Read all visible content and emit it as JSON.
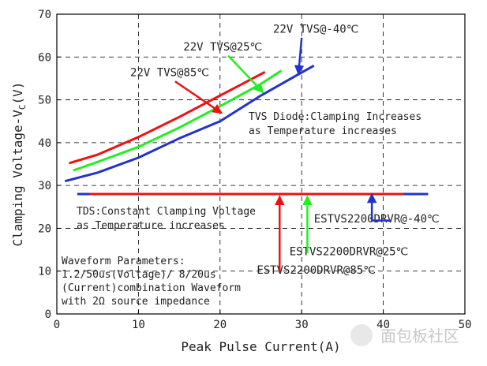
{
  "chart_data": {
    "type": "line",
    "xlabel": "Peak Pulse Current(A)",
    "ylabel_main": "Clamping Voltage-V",
    "ylabel_sub": "C",
    "ylabel_unit": "(V)",
    "xlim": [
      0,
      50
    ],
    "ylim": [
      0,
      70
    ],
    "x_ticks": [
      0,
      10,
      20,
      30,
      40,
      50
    ],
    "y_ticks": [
      0,
      10,
      20,
      30,
      40,
      50,
      60,
      70
    ],
    "grid": "dashed",
    "series": [
      {
        "name": "22V TVS@85℃",
        "color": "#ee1111",
        "x": [
          1.5,
          5,
          10,
          15,
          20,
          25.5
        ],
        "y": [
          35.2,
          37.2,
          41.3,
          46.0,
          51.0,
          56.5
        ]
      },
      {
        "name": "22V TVS@25℃",
        "color": "#22ee22",
        "x": [
          2,
          5,
          10,
          15,
          20,
          25,
          27.5
        ],
        "y": [
          33.5,
          35.5,
          39.0,
          43.5,
          48.5,
          53.7,
          56.8
        ]
      },
      {
        "name": "22V TVS@-40℃",
        "color": "#2233cc",
        "x": [
          1,
          5,
          10,
          15,
          20,
          25,
          31.5
        ],
        "y": [
          31.0,
          33.0,
          36.5,
          41.0,
          45.0,
          51.0,
          58.0
        ]
      },
      {
        "name": "ESTVS2200DRVR@85℃",
        "color": "#ee1111",
        "x": [
          4,
          27
        ],
        "y": [
          28,
          28
        ]
      },
      {
        "name": "ESTVS2200DRVR@25℃",
        "color": "#22ee22",
        "x": [
          27,
          32
        ],
        "y": [
          28,
          28
        ]
      },
      {
        "name": "ESTVS2200DRVR@-40℃",
        "color": "#2233cc",
        "x": [
          2.5,
          4,
          42.5,
          45.5
        ],
        "y": [
          28,
          28,
          28,
          28
        ]
      }
    ],
    "tds_dash": {
      "color": "#ee1111",
      "x": [
        27,
        42.5
      ],
      "y": [
        28,
        28
      ]
    },
    "notes": {
      "tvs_diode_1": "TVS Diode:Clamping Increases",
      "tvs_diode_2": "as Temperature increases",
      "tds_1": "TDS:Constant Clamping Voltage",
      "tds_2": "as Temperature increases",
      "wf_1": "Waveform Parameters:",
      "wf_2": "1.2/50us(Voltage)/ 8/20us",
      "wf_3": "(Current)combination Waveform",
      "wf_4": "with 2Ω source impedance"
    },
    "callouts": [
      {
        "label": "22V TVS@85℃",
        "color": "#ee1111",
        "label_pos": [
          9,
          55.5
        ],
        "arrow_from": [
          14.5,
          54.3
        ],
        "arrow_to": [
          20.2,
          46.9
        ]
      },
      {
        "label": "22V TVS@25℃",
        "color": "#22ee22",
        "label_pos": [
          15.5,
          61.5
        ],
        "arrow_from": [
          21.0,
          60.3
        ],
        "arrow_to": [
          25.3,
          51.7
        ]
      },
      {
        "label": "22V TVS@-40℃",
        "color": "#2233cc",
        "label_pos": [
          26.5,
          65.7
        ],
        "arrow_from": [
          30.0,
          64.5
        ],
        "arrow_to": [
          29.6,
          56.0
        ]
      },
      {
        "label": "ESTVS2200DRVR@85℃",
        "color": "#ee1111",
        "label_pos": [
          24.5,
          9.4
        ],
        "arrow_from": [
          27.3,
          9.7
        ],
        "arrow_to": [
          27.3,
          27.5
        ]
      },
      {
        "label": "ESTVS2200DRVR@25℃",
        "color": "#22ee22",
        "label_pos": [
          28.5,
          13.7
        ],
        "arrow_from": [
          30.7,
          14.2
        ],
        "arrow_to": [
          30.7,
          27.5
        ]
      },
      {
        "label": "ESTVS2200DRVR@-40℃",
        "color": "#2233cc",
        "label_pos": [
          31.5,
          21.4
        ],
        "arrow_from": [
          38.6,
          26.3
        ],
        "arrow_to": [
          38.6,
          28.0
        ],
        "elbow_x": 38.6
      }
    ]
  },
  "watermark": "面包板社区"
}
